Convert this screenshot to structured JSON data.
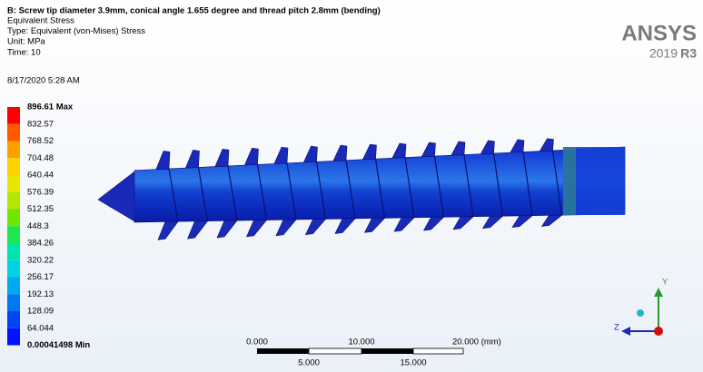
{
  "header": {
    "title": "B: Screw tip diameter 3.9mm, conical angle 1.655 degree and thread pitch 2.8mm (bending)",
    "lines": [
      "Equivalent Stress",
      "Type: Equivalent (von-Mises) Stress",
      "Unit: MPa",
      "Time: 10",
      "8/17/2020 5:28 AM"
    ]
  },
  "logo": {
    "name": "ANSYS",
    "version": "2019",
    "release": "R3"
  },
  "legend": {
    "labels": [
      "896.61 Max",
      "832.57",
      "768.52",
      "704.48",
      "640.44",
      "576.39",
      "512.35",
      "448.3",
      "384.26",
      "320.22",
      "256.17",
      "192.13",
      "128.09",
      "64.044",
      "0.00041498 Min"
    ],
    "colors": [
      "#ff0000",
      "#ff5a00",
      "#ffa000",
      "#ffd200",
      "#e6e600",
      "#b4e600",
      "#6ee600",
      "#1ee650",
      "#00e6aa",
      "#00d2e6",
      "#00aaf0",
      "#0078f0",
      "#0046f0",
      "#0014ff"
    ]
  },
  "scale": {
    "top": [
      "0.000",
      "10.000",
      "20.000 (mm)"
    ],
    "bottom": [
      "5.000",
      "15.000"
    ]
  },
  "triad": {
    "y": "Y",
    "z": "Z"
  }
}
